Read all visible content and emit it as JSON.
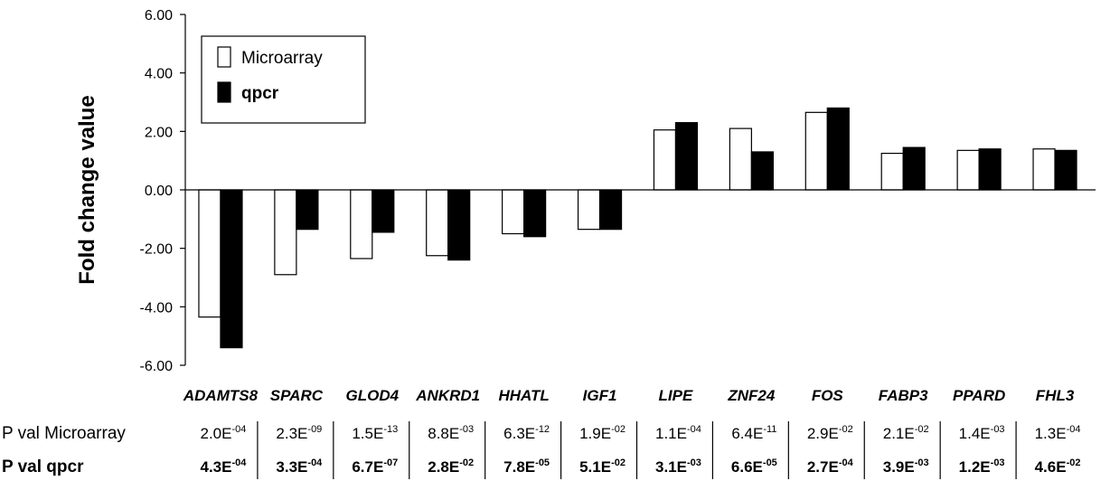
{
  "chart_data": {
    "type": "bar",
    "ylabel": "Fold change value",
    "ylim": [
      -6,
      6
    ],
    "y_ticks": [
      "6.00",
      "4.00",
      "2.00",
      "0.00",
      "-2.00",
      "-4.00",
      "-6.00"
    ],
    "categories": [
      "ADAMTS8",
      "SPARC",
      "GLOD4",
      "ANKRD1",
      "HHATL",
      "IGF1",
      "LIPE",
      "ZNF24",
      "FOS",
      "FABP3",
      "PPARD",
      "FHL3"
    ],
    "series": [
      {
        "name": "Microarray",
        "color": "#ffffff",
        "values": [
          -4.35,
          -2.9,
          -2.35,
          -2.25,
          -1.5,
          -1.35,
          2.05,
          2.1,
          2.65,
          1.25,
          1.35,
          1.4
        ]
      },
      {
        "name": "qpcr",
        "color": "#000000",
        "values": [
          -5.4,
          -1.35,
          -1.45,
          -2.4,
          -1.6,
          -1.35,
          2.3,
          1.3,
          2.8,
          1.45,
          1.4,
          1.35
        ]
      }
    ],
    "legend": {
      "position": "top-left",
      "labels": [
        "Microarray",
        "qpcr"
      ]
    },
    "pvalue_rows": [
      {
        "label": "P val Microarray",
        "bold": false,
        "values": [
          {
            "m": "2.0E",
            "e": "-04"
          },
          {
            "m": "2.3E",
            "e": "-09"
          },
          {
            "m": "1.5E",
            "e": "-13"
          },
          {
            "m": "8.8E",
            "e": "-03"
          },
          {
            "m": "6.3E",
            "e": "-12"
          },
          {
            "m": "1.9E",
            "e": "-02"
          },
          {
            "m": "1.1E",
            "e": "-04"
          },
          {
            "m": "6.4E",
            "e": "-11"
          },
          {
            "m": "2.9E",
            "e": "-02"
          },
          {
            "m": "2.1E",
            "e": "-02"
          },
          {
            "m": "1.4E",
            "e": "-03"
          },
          {
            "m": "1.3E",
            "e": "-04"
          }
        ]
      },
      {
        "label": "P val qpcr",
        "bold": true,
        "values": [
          {
            "m": "4.3E",
            "e": "-04"
          },
          {
            "m": "3.3E",
            "e": "-04"
          },
          {
            "m": "6.7E",
            "e": "-07"
          },
          {
            "m": "2.8E",
            "e": "-02"
          },
          {
            "m": "7.8E",
            "e": "-05"
          },
          {
            "m": "5.1E",
            "e": "-02"
          },
          {
            "m": "3.1E",
            "e": "-03"
          },
          {
            "m": "6.6E",
            "e": "-05"
          },
          {
            "m": "2.7E",
            "e": "-04"
          },
          {
            "m": "3.9E",
            "e": "-03"
          },
          {
            "m": "1.2E",
            "e": "-03"
          },
          {
            "m": "4.6E",
            "e": "-02"
          }
        ]
      }
    ]
  }
}
